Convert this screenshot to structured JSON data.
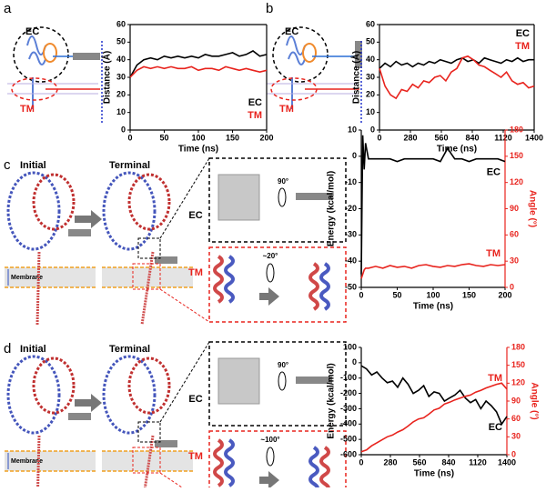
{
  "chart_data": [
    {
      "type": "line",
      "x_label": "Time (ns)",
      "y_label": "Distance (Å)",
      "xlim": [
        0,
        200
      ],
      "xticks": [
        0,
        50,
        100,
        150,
        200
      ],
      "ylim": [
        0,
        60
      ],
      "yticks": [
        0,
        10,
        20,
        30,
        40,
        50,
        60
      ],
      "legend": "lower right",
      "x": [
        0,
        10,
        20,
        30,
        40,
        50,
        60,
        70,
        80,
        90,
        100,
        110,
        120,
        130,
        140,
        150,
        160,
        170,
        180,
        190,
        200
      ],
      "series": [
        {
          "name": "EC",
          "color": "#000000",
          "values": [
            30,
            37,
            40,
            41,
            40,
            42,
            41,
            42,
            41,
            42,
            41,
            43,
            42,
            42,
            43,
            44,
            42,
            43,
            45,
            42,
            43
          ]
        },
        {
          "name": "TM",
          "color": "#e8231d",
          "values": [
            30,
            34,
            36,
            35,
            36,
            35,
            36,
            35,
            35,
            36,
            34,
            35,
            35,
            34,
            36,
            35,
            34,
            35,
            34,
            33,
            34
          ]
        }
      ]
    },
    {
      "type": "line",
      "x_label": "Time (ns)",
      "y_label": "Distance (Å)",
      "xlim": [
        0,
        1400
      ],
      "xticks": [
        0,
        280,
        560,
        840,
        1120,
        1400
      ],
      "ylim": [
        0,
        60
      ],
      "yticks": [
        0,
        10,
        20,
        30,
        40,
        50,
        60
      ],
      "legend": "upper right",
      "x": [
        0,
        50,
        100,
        150,
        200,
        250,
        300,
        350,
        400,
        450,
        500,
        550,
        600,
        650,
        700,
        750,
        800,
        850,
        900,
        950,
        1000,
        1050,
        1100,
        1150,
        1200,
        1250,
        1300,
        1350,
        1400
      ],
      "series": [
        {
          "name": "EC",
          "color": "#000000",
          "values": [
            35,
            38,
            36,
            39,
            37,
            38,
            36,
            38,
            37,
            39,
            38,
            40,
            39,
            38,
            40,
            41,
            39,
            40,
            38,
            41,
            40,
            39,
            38,
            40,
            39,
            41,
            39,
            40,
            40
          ]
        },
        {
          "name": "TM",
          "color": "#e8231d",
          "values": [
            35,
            25,
            20,
            18,
            23,
            22,
            26,
            24,
            28,
            27,
            30,
            31,
            28,
            33,
            35,
            41,
            42,
            40,
            37,
            36,
            34,
            32,
            30,
            33,
            28,
            26,
            27,
            24,
            25
          ]
        }
      ]
    },
    {
      "type": "line",
      "x_label": "Time (ns)",
      "y_label": "Energy (kcal/mol)",
      "y2_label": "Angle (°)",
      "xlim": [
        0,
        200
      ],
      "xticks": [
        0,
        50,
        100,
        150,
        200
      ],
      "ylim": [
        -50,
        10
      ],
      "yticks": [
        -50,
        -40,
        -30,
        -20,
        -10,
        0,
        10
      ],
      "y2lim": [
        0,
        180
      ],
      "y2ticks": [
        0,
        30,
        60,
        90,
        120,
        150,
        180
      ],
      "legend": "inline",
      "x": [
        0,
        2,
        4,
        6,
        10,
        20,
        30,
        40,
        50,
        60,
        70,
        80,
        90,
        100,
        110,
        120,
        130,
        140,
        150,
        160,
        170,
        180,
        190,
        200
      ],
      "series": [
        {
          "name": "EC",
          "color": "#000000",
          "values": [
            -45,
            8,
            -5,
            5,
            -1,
            -1,
            -1,
            -1,
            -2,
            -1,
            -1,
            -1,
            -1,
            -1,
            -2,
            3,
            -1,
            -1,
            -2,
            -1,
            -1,
            -1,
            -1,
            -2
          ]
        },
        {
          "name": "TM",
          "color": "#e8231d",
          "axis": "y2",
          "values": [
            10,
            15,
            20,
            22,
            22,
            24,
            22,
            25,
            23,
            24,
            22,
            25,
            26,
            24,
            23,
            25,
            24,
            26,
            27,
            25,
            24,
            26,
            25,
            26
          ]
        }
      ]
    },
    {
      "type": "line",
      "x_label": "Time (ns)",
      "y_label": "Energy (kcal/mol)",
      "y2_label": "Angle (°)",
      "xlim": [
        0,
        1400
      ],
      "xticks": [
        0,
        280,
        560,
        840,
        1120,
        1400
      ],
      "ylim": [
        -600,
        100
      ],
      "yticks": [
        -600,
        -500,
        -400,
        -300,
        -200,
        -100,
        0,
        100
      ],
      "y2lim": [
        0,
        180
      ],
      "y2ticks": [
        0,
        30,
        60,
        90,
        120,
        150,
        180
      ],
      "legend": "inline",
      "x": [
        0,
        50,
        100,
        150,
        200,
        250,
        300,
        350,
        400,
        450,
        500,
        550,
        600,
        650,
        700,
        750,
        800,
        850,
        900,
        950,
        1000,
        1050,
        1100,
        1150,
        1200,
        1250,
        1300,
        1350,
        1400
      ],
      "series": [
        {
          "name": "EC",
          "color": "#000000",
          "values": [
            -20,
            -40,
            -80,
            -60,
            -100,
            -130,
            -120,
            -160,
            -100,
            -140,
            -200,
            -180,
            -150,
            -220,
            -190,
            -200,
            -250,
            -230,
            -210,
            -180,
            -230,
            -260,
            -240,
            -300,
            -250,
            -280,
            -320,
            -400,
            -350
          ]
        },
        {
          "name": "TM",
          "color": "#e8231d",
          "axis": "y2",
          "values": [
            5,
            8,
            15,
            20,
            25,
            30,
            33,
            38,
            42,
            48,
            55,
            60,
            62,
            68,
            75,
            78,
            85,
            88,
            92,
            95,
            98,
            100,
            105,
            108,
            112,
            115,
            118,
            120,
            110
          ]
        }
      ]
    }
  ],
  "illustrations": {
    "panel_labels": [
      "a",
      "b",
      "c",
      "d"
    ],
    "a": {
      "ec": "EC",
      "tm": "TM"
    },
    "b": {
      "ec": "EC",
      "tm": "TM"
    },
    "c": {
      "initial": "Initial",
      "terminal": "Terminal",
      "membrane": "Membrane",
      "ec": "EC",
      "tm": "TM",
      "rotation_ec": "90°",
      "rotation_tm": "~20°"
    },
    "d": {
      "initial": "Initial",
      "terminal": "Terminal",
      "membrane": "Membrane",
      "ec": "EC",
      "tm": "TM",
      "rotation_ec": "90°",
      "rotation_tm": "~100°"
    }
  }
}
